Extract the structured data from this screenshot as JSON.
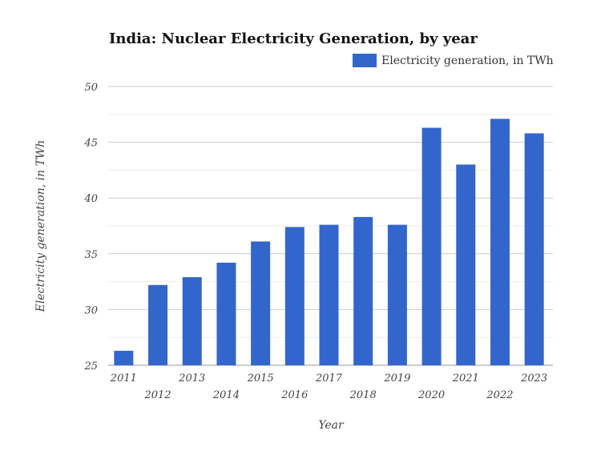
{
  "chart_data": {
    "type": "bar",
    "title": "India: Nuclear Electricity Generation, by year",
    "xlabel": "Year",
    "ylabel": "Electricity generation, in TWh",
    "categories": [
      "2011",
      "2012",
      "2013",
      "2014",
      "2015",
      "2016",
      "2017",
      "2018",
      "2019",
      "2020",
      "2021",
      "2022",
      "2023"
    ],
    "series": [
      {
        "name": "Electricity generation, in TWh",
        "values": [
          26.3,
          32.2,
          32.9,
          34.2,
          36.1,
          37.4,
          37.6,
          38.3,
          37.6,
          46.3,
          43.0,
          47.1,
          45.8
        ]
      }
    ],
    "ylim": [
      25,
      50
    ],
    "yticks": [
      25,
      30,
      35,
      40,
      45,
      50
    ],
    "grid": true,
    "legend_position": "top-right",
    "color": "#3366cc"
  }
}
